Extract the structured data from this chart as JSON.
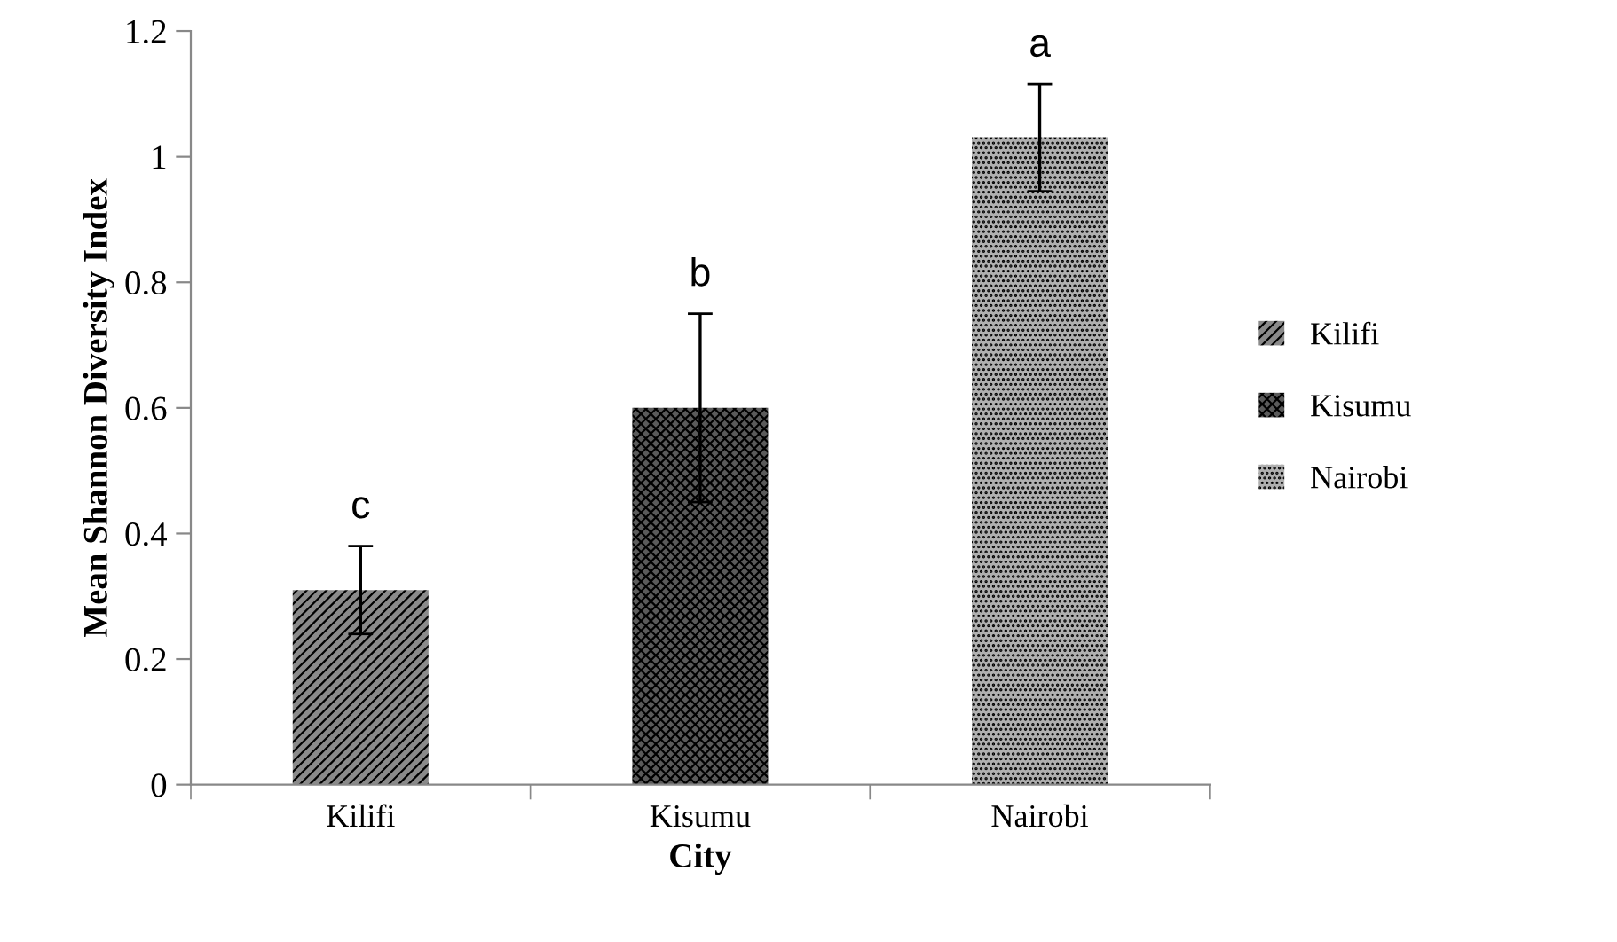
{
  "chart_data": {
    "type": "bar",
    "xlabel": "City",
    "ylabel": "Mean Shannon Diversity Index",
    "categories": [
      "Kilifi",
      "Kisumu",
      "Nairobi"
    ],
    "series": [
      {
        "name": "Kilifi",
        "color": "#8a8a8a",
        "values": [
          0.31,
          null,
          null
        ],
        "errors": [
          0.07,
          null,
          null
        ]
      },
      {
        "name": "Kisumu",
        "color": "#5a5a5a",
        "values": [
          null,
          0.6,
          null
        ],
        "errors": [
          null,
          0.15,
          null
        ]
      },
      {
        "name": "Nairobi",
        "color": "#b0b0b0",
        "values": [
          null,
          null,
          1.03
        ],
        "errors": [
          null,
          null,
          0.085
        ]
      }
    ],
    "ylim": [
      0,
      1.2
    ],
    "yticks": [
      0,
      0.2,
      0.4,
      0.6,
      0.8,
      1,
      1.2
    ],
    "legend": "right",
    "grid": false,
    "annotations": [
      "c",
      "b",
      "a"
    ]
  }
}
